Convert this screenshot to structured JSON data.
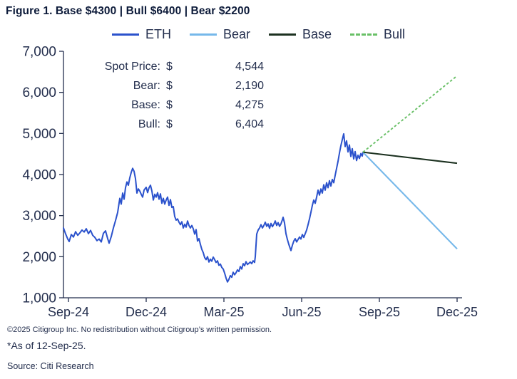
{
  "page": {
    "title": "Figure 1. Base $4300 | Bull $6400 | Bear $2200"
  },
  "legend": {
    "items": [
      {
        "label": "ETH",
        "color": "#2b52cc",
        "dashed": false
      },
      {
        "label": "Bear",
        "color": "#76b8ea",
        "dashed": false
      },
      {
        "label": "Base",
        "color": "#1c3120",
        "dashed": false
      },
      {
        "label": "Bull",
        "color": "#69c067",
        "dashed": true
      }
    ]
  },
  "annotation": {
    "rows": [
      {
        "label": "Spot Price:",
        "currency": "$",
        "value": "4,544"
      },
      {
        "label": "Bear:",
        "currency": "$",
        "value": "2,190"
      },
      {
        "label": "Base:",
        "currency": "$",
        "value": "4,275"
      },
      {
        "label": "Bull:",
        "currency": "$",
        "value": "6,404"
      }
    ]
  },
  "footer": {
    "copyright": "©2025 Citigroup Inc. No redistribution without Citigroup’s written permission.",
    "as_of": "*As of 12-Sep-25.",
    "source": "Source: Citi Research"
  },
  "chart_data": {
    "type": "line",
    "title": "Figure 1. Base $4300 | Bull $6400 | Bear $2200",
    "grid": false,
    "legend_position": "top-center",
    "colors": {
      "axis": "#232e4d",
      "text": "#232e4d"
    },
    "y_axis": {
      "min": 1000,
      "max": 7000,
      "step": 1000,
      "tick_labels": [
        "1,000",
        "2,000",
        "3,000",
        "4,000",
        "5,000",
        "6,000",
        "7,000"
      ]
    },
    "x_axis": {
      "tick_labels": [
        "Sep-24",
        "Dec-24",
        "Mar-25",
        "Jun-25",
        "Sep-25",
        "Dec-25"
      ]
    },
    "spot": {
      "label": "Spot Price",
      "date": "12-Sep-25",
      "value": 4544
    },
    "eth_series": {
      "name": "ETH",
      "color": "#2b52cc",
      "unit": "USD",
      "x_note": "position along time axis, 0 = Sep-24 axis start, 420 = spot date 12-Sep-25",
      "points": [
        [
          0,
          2700
        ],
        [
          3,
          2555
        ],
        [
          6,
          2430
        ],
        [
          8,
          2370
        ],
        [
          11,
          2540
        ],
        [
          14,
          2480
        ],
        [
          17,
          2610
        ],
        [
          20,
          2520
        ],
        [
          23,
          2580
        ],
        [
          26,
          2650
        ],
        [
          29,
          2600
        ],
        [
          32,
          2680
        ],
        [
          35,
          2560
        ],
        [
          38,
          2640
        ],
        [
          41,
          2520
        ],
        [
          44,
          2470
        ],
        [
          47,
          2390
        ],
        [
          50,
          2430
        ],
        [
          53,
          2360
        ],
        [
          56,
          2570
        ],
        [
          59,
          2630
        ],
        [
          62,
          2440
        ],
        [
          64,
          2330
        ],
        [
          67,
          2490
        ],
        [
          70,
          2700
        ],
        [
          73,
          2880
        ],
        [
          76,
          3080
        ],
        [
          79,
          3420
        ],
        [
          81,
          3280
        ],
        [
          83,
          3550
        ],
        [
          85,
          3400
        ],
        [
          87,
          3680
        ],
        [
          89,
          3820
        ],
        [
          91,
          3740
        ],
        [
          93,
          3920
        ],
        [
          95,
          4050
        ],
        [
          97,
          4150
        ],
        [
          99,
          4080
        ],
        [
          101,
          3900
        ],
        [
          103,
          3550
        ],
        [
          105,
          3650
        ],
        [
          107,
          3600
        ],
        [
          109,
          3520
        ],
        [
          111,
          3450
        ],
        [
          113,
          3620
        ],
        [
          116,
          3690
        ],
        [
          118,
          3560
        ],
        [
          120,
          3680
        ],
        [
          122,
          3740
        ],
        [
          124,
          3600
        ],
        [
          126,
          3380
        ],
        [
          128,
          3520
        ],
        [
          130,
          3450
        ],
        [
          132,
          3560
        ],
        [
          134,
          3400
        ],
        [
          136,
          3530
        ],
        [
          138,
          3300
        ],
        [
          140,
          3420
        ],
        [
          142,
          3280
        ],
        [
          144,
          3380
        ],
        [
          146,
          3450
        ],
        [
          148,
          3250
        ],
        [
          150,
          3390
        ],
        [
          152,
          3200
        ],
        [
          154,
          3220
        ],
        [
          156,
          2980
        ],
        [
          158,
          2890
        ],
        [
          160,
          2920
        ],
        [
          162,
          2840
        ],
        [
          164,
          2780
        ],
        [
          166,
          2850
        ],
        [
          168,
          2700
        ],
        [
          170,
          2790
        ],
        [
          172,
          2720
        ],
        [
          174,
          2870
        ],
        [
          176,
          2760
        ],
        [
          178,
          2700
        ],
        [
          180,
          2760
        ],
        [
          182,
          2680
        ],
        [
          184,
          2550
        ],
        [
          186,
          2660
        ],
        [
          188,
          2380
        ],
        [
          190,
          2440
        ],
        [
          192,
          2300
        ],
        [
          194,
          2180
        ],
        [
          196,
          2100
        ],
        [
          198,
          1980
        ],
        [
          200,
          1930
        ],
        [
          202,
          2000
        ],
        [
          204,
          1870
        ],
        [
          206,
          1940
        ],
        [
          208,
          1890
        ],
        [
          210,
          1990
        ],
        [
          212,
          1930
        ],
        [
          214,
          1860
        ],
        [
          216,
          1900
        ],
        [
          218,
          1790
        ],
        [
          220,
          1820
        ],
        [
          222,
          1740
        ],
        [
          224,
          1700
        ],
        [
          226,
          1600
        ],
        [
          228,
          1480
        ],
        [
          230,
          1385
        ],
        [
          232,
          1450
        ],
        [
          234,
          1540
        ],
        [
          236,
          1500
        ],
        [
          238,
          1620
        ],
        [
          240,
          1560
        ],
        [
          242,
          1610
        ],
        [
          244,
          1680
        ],
        [
          246,
          1640
        ],
        [
          248,
          1760
        ],
        [
          250,
          1700
        ],
        [
          252,
          1830
        ],
        [
          254,
          1780
        ],
        [
          256,
          1880
        ],
        [
          258,
          1810
        ],
        [
          260,
          1840
        ],
        [
          262,
          1870
        ],
        [
          264,
          1830
        ],
        [
          266,
          1900
        ],
        [
          268,
          1860
        ],
        [
          269,
          2000
        ],
        [
          271,
          2550
        ],
        [
          273,
          2650
        ],
        [
          275,
          2700
        ],
        [
          277,
          2780
        ],
        [
          279,
          2700
        ],
        [
          281,
          2760
        ],
        [
          283,
          2840
        ],
        [
          285,
          2740
        ],
        [
          287,
          2800
        ],
        [
          289,
          2690
        ],
        [
          291,
          2810
        ],
        [
          293,
          2730
        ],
        [
          295,
          2790
        ],
        [
          297,
          2870
        ],
        [
          299,
          2760
        ],
        [
          301,
          2830
        ],
        [
          303,
          2740
        ],
        [
          305,
          2800
        ],
        [
          307,
          2900
        ],
        [
          308,
          2960
        ],
        [
          310,
          2820
        ],
        [
          312,
          2560
        ],
        [
          314,
          2420
        ],
        [
          316,
          2300
        ],
        [
          319,
          2150
        ],
        [
          321,
          2280
        ],
        [
          323,
          2380
        ],
        [
          325,
          2440
        ],
        [
          327,
          2360
        ],
        [
          329,
          2420
        ],
        [
          331,
          2480
        ],
        [
          333,
          2430
        ],
        [
          335,
          2540
        ],
        [
          337,
          2470
        ],
        [
          339,
          2560
        ],
        [
          341,
          2650
        ],
        [
          343,
          2780
        ],
        [
          345,
          2920
        ],
        [
          347,
          3080
        ],
        [
          349,
          3250
        ],
        [
          351,
          3380
        ],
        [
          353,
          3300
        ],
        [
          355,
          3450
        ],
        [
          357,
          3620
        ],
        [
          359,
          3500
        ],
        [
          361,
          3650
        ],
        [
          363,
          3550
        ],
        [
          365,
          3750
        ],
        [
          367,
          3620
        ],
        [
          369,
          3800
        ],
        [
          371,
          3680
        ],
        [
          373,
          3850
        ],
        [
          375,
          3720
        ],
        [
          377,
          3880
        ],
        [
          379,
          3800
        ],
        [
          381,
          3980
        ],
        [
          383,
          4150
        ],
        [
          385,
          4320
        ],
        [
          387,
          4520
        ],
        [
          389,
          4700
        ],
        [
          391,
          4850
        ],
        [
          393,
          4990
        ],
        [
          395,
          4680
        ],
        [
          397,
          4820
        ],
        [
          399,
          4550
        ],
        [
          401,
          4720
        ],
        [
          403,
          4440
        ],
        [
          405,
          4630
        ],
        [
          407,
          4380
        ],
        [
          409,
          4560
        ],
        [
          411,
          4340
        ],
        [
          413,
          4470
        ],
        [
          415,
          4390
        ],
        [
          417,
          4510
        ],
        [
          419,
          4450
        ],
        [
          420,
          4544
        ]
      ]
    },
    "projections": {
      "start": {
        "date": "12-Sep-25",
        "value": 4544
      },
      "end_label": "Dec-25",
      "lines": [
        {
          "name": "Bear",
          "end_value": 2190,
          "color": "#76b8ea",
          "style": "solid"
        },
        {
          "name": "Base",
          "end_value": 4275,
          "color": "#1c3120",
          "style": "solid"
        },
        {
          "name": "Bull",
          "end_value": 6404,
          "color": "#69c067",
          "style": "dashed"
        }
      ]
    }
  }
}
